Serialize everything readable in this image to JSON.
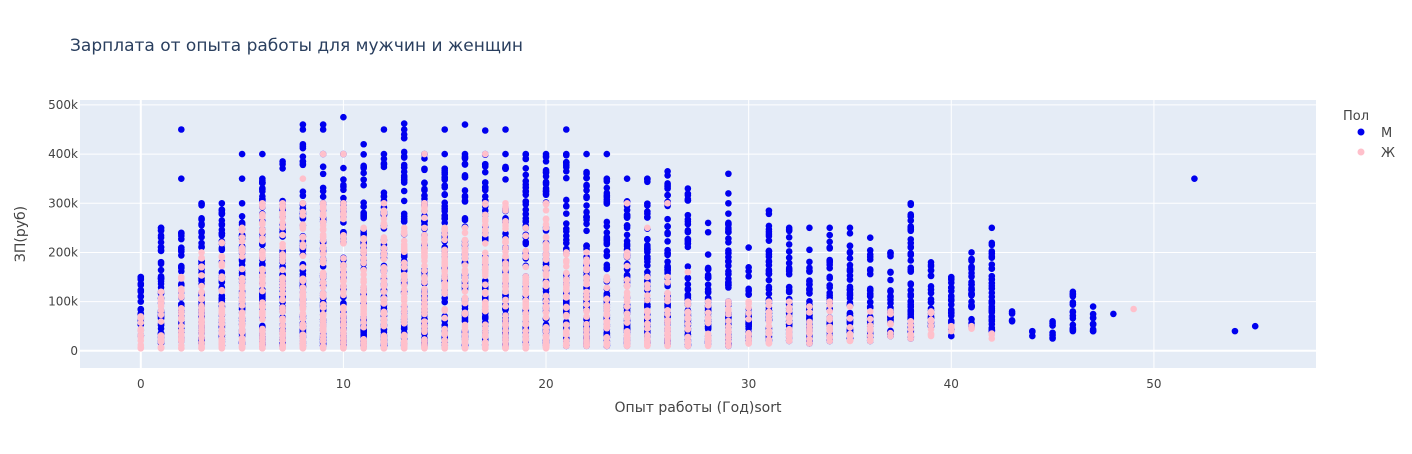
{
  "chart_data": {
    "type": "scatter",
    "title": "Зарплата от опыта работы для мужчин и женщин",
    "xlabel": "Опыт работы (Год)sort",
    "ylabel": "ЗП(руб)",
    "xlim": [
      -3,
      58
    ],
    "ylim": [
      -35000,
      510000
    ],
    "x_ticks": [
      0,
      10,
      20,
      30,
      40,
      50
    ],
    "y_ticks": [
      0,
      100000,
      200000,
      300000,
      400000,
      500000
    ],
    "y_tick_labels": [
      "0",
      "100k",
      "200k",
      "300k",
      "400k",
      "500k"
    ],
    "grid": true,
    "legend": {
      "title": "Пол",
      "placement": "right-top"
    },
    "colors": {
      "plot_bg": "#e5ecf6",
      "grid": "#ffffff",
      "male": "#0000ee",
      "female": "#ffc0cb",
      "text": "#444444",
      "title": "#2a3f5f"
    },
    "series": [
      {
        "name": "М",
        "color": "#0000ee",
        "columns": [
          {
            "x": 0,
            "min": 30000,
            "max": 150000,
            "extra": [
              100000,
              120000,
              150000
            ]
          },
          {
            "x": 1,
            "min": 15000,
            "max": 250000,
            "extra": [
              230000,
              250000
            ]
          },
          {
            "x": 2,
            "min": 20000,
            "max": 240000,
            "extra": [
              350000,
              450000
            ]
          },
          {
            "x": 3,
            "min": 15000,
            "max": 300000,
            "extra": []
          },
          {
            "x": 4,
            "min": 10000,
            "max": 300000,
            "extra": []
          },
          {
            "x": 5,
            "min": 15000,
            "max": 300000,
            "extra": [
              350000,
              400000
            ]
          },
          {
            "x": 6,
            "min": 10000,
            "max": 350000,
            "extra": [
              400000
            ]
          },
          {
            "x": 7,
            "min": 10000,
            "max": 385000,
            "extra": []
          },
          {
            "x": 8,
            "min": 10000,
            "max": 420000,
            "extra": [
              450000,
              460000
            ]
          },
          {
            "x": 9,
            "min": 10000,
            "max": 400000,
            "extra": [
              450000,
              460000
            ]
          },
          {
            "x": 10,
            "min": 10000,
            "max": 400000,
            "extra": [
              475000
            ]
          },
          {
            "x": 11,
            "min": 10000,
            "max": 420000,
            "extra": []
          },
          {
            "x": 12,
            "min": 10000,
            "max": 400000,
            "extra": [
              450000
            ]
          },
          {
            "x": 13,
            "min": 10000,
            "max": 440000,
            "extra": [
              450000,
              462000
            ]
          },
          {
            "x": 14,
            "min": 10000,
            "max": 400000,
            "extra": []
          },
          {
            "x": 15,
            "min": 10000,
            "max": 400000,
            "extra": [
              450000
            ]
          },
          {
            "x": 16,
            "min": 10000,
            "max": 400000,
            "extra": [
              460000
            ]
          },
          {
            "x": 17,
            "min": 10000,
            "max": 400000,
            "extra": [
              448000
            ]
          },
          {
            "x": 18,
            "min": 10000,
            "max": 400000,
            "extra": [
              450000
            ]
          },
          {
            "x": 19,
            "min": 10000,
            "max": 400000,
            "extra": []
          },
          {
            "x": 20,
            "min": 10000,
            "max": 400000,
            "extra": []
          },
          {
            "x": 21,
            "min": 10000,
            "max": 400000,
            "extra": [
              450000
            ]
          },
          {
            "x": 22,
            "min": 10000,
            "max": 400000,
            "extra": []
          },
          {
            "x": 23,
            "min": 10000,
            "max": 350000,
            "extra": [
              400000
            ]
          },
          {
            "x": 24,
            "min": 10000,
            "max": 350000,
            "extra": []
          },
          {
            "x": 25,
            "min": 15000,
            "max": 350000,
            "extra": []
          },
          {
            "x": 26,
            "min": 15000,
            "max": 365000,
            "extra": []
          },
          {
            "x": 27,
            "min": 10000,
            "max": 330000,
            "extra": []
          },
          {
            "x": 28,
            "min": 15000,
            "max": 260000,
            "extra": []
          },
          {
            "x": 29,
            "min": 10000,
            "max": 300000,
            "extra": [
              320000,
              360000
            ]
          },
          {
            "x": 30,
            "min": 20000,
            "max": 210000,
            "extra": []
          },
          {
            "x": 31,
            "min": 20000,
            "max": 285000,
            "extra": []
          },
          {
            "x": 32,
            "min": 20000,
            "max": 250000,
            "extra": []
          },
          {
            "x": 33,
            "min": 15000,
            "max": 250000,
            "extra": []
          },
          {
            "x": 34,
            "min": 20000,
            "max": 250000,
            "extra": []
          },
          {
            "x": 35,
            "min": 25000,
            "max": 250000,
            "extra": []
          },
          {
            "x": 36,
            "min": 20000,
            "max": 230000,
            "extra": []
          },
          {
            "x": 37,
            "min": 30000,
            "max": 200000,
            "extra": []
          },
          {
            "x": 38,
            "min": 25000,
            "max": 300000,
            "extra": [
              210000,
              250000
            ]
          },
          {
            "x": 39,
            "min": 50000,
            "max": 180000,
            "extra": []
          },
          {
            "x": 40,
            "min": 30000,
            "max": 150000,
            "extra": []
          },
          {
            "x": 41,
            "min": 50000,
            "max": 200000,
            "extra": []
          },
          {
            "x": 42,
            "min": 40000,
            "max": 250000,
            "extra": []
          },
          {
            "x": 43,
            "min": 60000,
            "max": 80000,
            "extra": []
          },
          {
            "x": 44,
            "min": 30000,
            "max": 40000,
            "extra": []
          },
          {
            "x": 45,
            "min": 25000,
            "max": 60000,
            "extra": []
          },
          {
            "x": 46,
            "min": 40000,
            "max": 120000,
            "extra": []
          },
          {
            "x": 47,
            "min": 40000,
            "max": 90000,
            "extra": []
          },
          {
            "x": 48,
            "min": 75000,
            "max": 75000,
            "extra": []
          },
          {
            "x": 52,
            "min": 350000,
            "max": 350000,
            "extra": []
          },
          {
            "x": 54,
            "min": 40000,
            "max": 40000,
            "extra": []
          },
          {
            "x": 55,
            "min": 50000,
            "max": 50000,
            "extra": []
          }
        ]
      },
      {
        "name": "Ж",
        "color": "#ffc0cb",
        "columns": [
          {
            "x": 0,
            "min": 5000,
            "max": 70000,
            "extra": []
          },
          {
            "x": 1,
            "min": 5000,
            "max": 120000,
            "extra": []
          },
          {
            "x": 2,
            "min": 5000,
            "max": 150000,
            "extra": []
          },
          {
            "x": 3,
            "min": 5000,
            "max": 200000,
            "extra": []
          },
          {
            "x": 4,
            "min": 5000,
            "max": 220000,
            "extra": []
          },
          {
            "x": 5,
            "min": 5000,
            "max": 250000,
            "extra": []
          },
          {
            "x": 6,
            "min": 5000,
            "max": 300000,
            "extra": []
          },
          {
            "x": 7,
            "min": 5000,
            "max": 300000,
            "extra": []
          },
          {
            "x": 8,
            "min": 5000,
            "max": 300000,
            "extra": [
              350000
            ]
          },
          {
            "x": 9,
            "min": 5000,
            "max": 300000,
            "extra": [
              400000
            ]
          },
          {
            "x": 10,
            "min": 5000,
            "max": 300000,
            "extra": [
              400000
            ]
          },
          {
            "x": 11,
            "min": 5000,
            "max": 250000,
            "extra": []
          },
          {
            "x": 12,
            "min": 5000,
            "max": 300000,
            "extra": []
          },
          {
            "x": 13,
            "min": 5000,
            "max": 250000,
            "extra": []
          },
          {
            "x": 14,
            "min": 5000,
            "max": 300000,
            "extra": [
              400000
            ]
          },
          {
            "x": 15,
            "min": 5000,
            "max": 250000,
            "extra": []
          },
          {
            "x": 16,
            "min": 5000,
            "max": 250000,
            "extra": []
          },
          {
            "x": 17,
            "min": 5000,
            "max": 300000,
            "extra": [
              400000
            ]
          },
          {
            "x": 18,
            "min": 5000,
            "max": 300000,
            "extra": []
          },
          {
            "x": 19,
            "min": 5000,
            "max": 250000,
            "extra": []
          },
          {
            "x": 20,
            "min": 5000,
            "max": 300000,
            "extra": []
          },
          {
            "x": 21,
            "min": 10000,
            "max": 200000,
            "extra": []
          },
          {
            "x": 22,
            "min": 10000,
            "max": 200000,
            "extra": []
          },
          {
            "x": 23,
            "min": 10000,
            "max": 150000,
            "extra": []
          },
          {
            "x": 24,
            "min": 10000,
            "max": 200000,
            "extra": [
              300000
            ]
          },
          {
            "x": 25,
            "min": 10000,
            "max": 150000,
            "extra": [
              250000
            ]
          },
          {
            "x": 26,
            "min": 10000,
            "max": 150000,
            "extra": [
              300000
            ]
          },
          {
            "x": 27,
            "min": 10000,
            "max": 100000,
            "extra": [
              160000
            ]
          },
          {
            "x": 28,
            "min": 10000,
            "max": 100000,
            "extra": []
          },
          {
            "x": 29,
            "min": 10000,
            "max": 100000,
            "extra": []
          },
          {
            "x": 30,
            "min": 15000,
            "max": 100000,
            "extra": []
          },
          {
            "x": 31,
            "min": 15000,
            "max": 100000,
            "extra": []
          },
          {
            "x": 32,
            "min": 20000,
            "max": 100000,
            "extra": []
          },
          {
            "x": 33,
            "min": 15000,
            "max": 90000,
            "extra": []
          },
          {
            "x": 34,
            "min": 20000,
            "max": 100000,
            "extra": []
          },
          {
            "x": 35,
            "min": 20000,
            "max": 90000,
            "extra": []
          },
          {
            "x": 36,
            "min": 20000,
            "max": 80000,
            "extra": []
          },
          {
            "x": 37,
            "min": 30000,
            "max": 80000,
            "extra": []
          },
          {
            "x": 38,
            "min": 25000,
            "max": 60000,
            "extra": []
          },
          {
            "x": 39,
            "min": 30000,
            "max": 80000,
            "extra": []
          },
          {
            "x": 40,
            "min": 40000,
            "max": 50000,
            "extra": []
          },
          {
            "x": 41,
            "min": 45000,
            "max": 50000,
            "extra": []
          },
          {
            "x": 42,
            "min": 25000,
            "max": 35000,
            "extra": []
          },
          {
            "x": 49,
            "min": 85000,
            "max": 85000,
            "extra": []
          }
        ]
      }
    ]
  }
}
